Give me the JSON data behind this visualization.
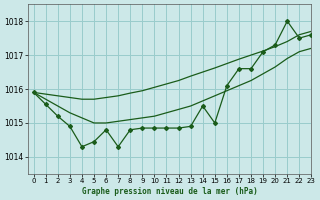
{
  "title": "Graphe pression niveau de la mer (hPa)",
  "background_color": "#cce8e8",
  "grid_color": "#99cccc",
  "line_color": "#1a5c1a",
  "xlim": [
    -0.5,
    23
  ],
  "ylim": [
    1013.5,
    1018.5
  ],
  "yticks": [
    1014,
    1015,
    1016,
    1017,
    1018
  ],
  "xticks": [
    0,
    1,
    2,
    3,
    4,
    5,
    6,
    7,
    8,
    9,
    10,
    11,
    12,
    13,
    14,
    15,
    16,
    17,
    18,
    19,
    20,
    21,
    22,
    23
  ],
  "hours": [
    0,
    1,
    2,
    3,
    4,
    5,
    6,
    7,
    8,
    9,
    10,
    11,
    12,
    13,
    14,
    15,
    16,
    17,
    18,
    19,
    20,
    21,
    22,
    23
  ],
  "pressure_measured": [
    1015.9,
    1015.55,
    1015.2,
    1014.9,
    1014.3,
    1014.45,
    1014.8,
    1014.3,
    1014.8,
    1014.85,
    1014.85,
    1014.85,
    1014.85,
    1014.9,
    1015.5,
    1015.0,
    1016.1,
    1016.6,
    1016.6,
    1017.1,
    1017.3,
    1018.0,
    1017.5,
    1017.6
  ],
  "trend_upper": [
    1015.9,
    1015.85,
    1015.8,
    1015.75,
    1015.7,
    1015.7,
    1015.75,
    1015.8,
    1015.88,
    1015.95,
    1016.05,
    1016.15,
    1016.25,
    1016.38,
    1016.5,
    1016.62,
    1016.75,
    1016.88,
    1017.0,
    1017.12,
    1017.25,
    1017.4,
    1017.6,
    1017.7
  ],
  "trend_lower": [
    1015.9,
    1015.7,
    1015.5,
    1015.3,
    1015.15,
    1015.0,
    1015.0,
    1015.05,
    1015.1,
    1015.15,
    1015.2,
    1015.3,
    1015.4,
    1015.5,
    1015.65,
    1015.8,
    1015.95,
    1016.1,
    1016.25,
    1016.45,
    1016.65,
    1016.9,
    1017.1,
    1017.2
  ]
}
